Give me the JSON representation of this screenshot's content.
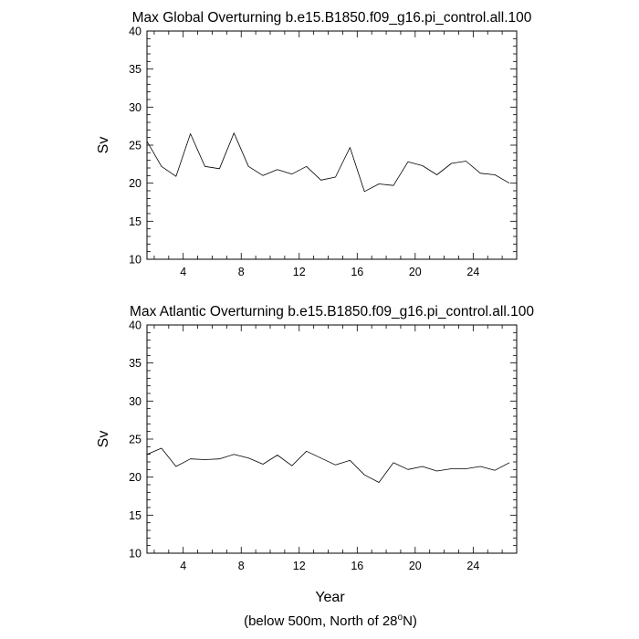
{
  "chart_data": [
    {
      "type": "line",
      "title": "Max Global Overturning b.e15.B1850.f09_g16.pi_control.all.100",
      "xlabel": "",
      "ylabel": "Sv",
      "xlim": [
        1.5,
        27
      ],
      "ylim": [
        10,
        40
      ],
      "xticks": [
        4,
        8,
        12,
        16,
        20,
        24
      ],
      "xtick_labels": [
        "4",
        "8",
        "12",
        "16",
        "20",
        "24"
      ],
      "yticks": [
        10,
        15,
        20,
        25,
        30,
        35,
        40
      ],
      "ytick_labels": [
        "10",
        "15",
        "20",
        "25",
        "30",
        "35",
        "40"
      ],
      "grid": false,
      "series": [
        {
          "x": [
            1.5,
            2.5,
            3.5,
            4.5,
            5.5,
            6.5,
            7.5,
            8.5,
            9.5,
            10.5,
            11.5,
            12.5,
            13.5,
            14.5,
            15.5,
            16.5,
            17.5,
            18.5,
            19.5,
            20.5,
            21.5,
            22.5,
            23.5,
            24.5,
            25.5,
            26.5
          ],
          "values": [
            25.5,
            22.2,
            20.9,
            26.5,
            22.2,
            21.9,
            26.6,
            22.2,
            21.0,
            21.8,
            21.2,
            22.2,
            20.4,
            20.8,
            24.7,
            18.9,
            19.9,
            19.7,
            22.8,
            22.3,
            21.1,
            22.6,
            22.9,
            21.3,
            21.1,
            20.0
          ]
        }
      ]
    },
    {
      "type": "line",
      "title": "Max Atlantic Overturning b.e15.B1850.f09_g16.pi_control.all.100",
      "xlabel": "Year",
      "ylabel": "Sv",
      "xlim": [
        1.5,
        27
      ],
      "ylim": [
        10,
        40
      ],
      "xticks": [
        4,
        8,
        12,
        16,
        20,
        24
      ],
      "xtick_labels": [
        "4",
        "8",
        "12",
        "16",
        "20",
        "24"
      ],
      "yticks": [
        10,
        15,
        20,
        25,
        30,
        35,
        40
      ],
      "ytick_labels": [
        "10",
        "15",
        "20",
        "25",
        "30",
        "35",
        "40"
      ],
      "grid": false,
      "series": [
        {
          "x": [
            1.5,
            2.5,
            3.5,
            4.5,
            5.5,
            6.5,
            7.5,
            8.5,
            9.5,
            10.5,
            11.5,
            12.5,
            13.5,
            14.5,
            15.5,
            16.5,
            17.5,
            18.5,
            19.5,
            20.5,
            21.5,
            22.5,
            23.5,
            24.5,
            25.5,
            26.5
          ],
          "values": [
            23.0,
            23.8,
            21.4,
            22.4,
            22.3,
            22.4,
            23.0,
            22.5,
            21.7,
            22.9,
            21.5,
            23.4,
            22.5,
            21.6,
            22.2,
            20.3,
            19.3,
            21.9,
            21.0,
            21.4,
            20.8,
            21.1,
            21.1,
            21.4,
            20.9,
            21.9
          ]
        }
      ]
    }
  ],
  "caption": {
    "before": "(below 500m, North of 28",
    "superscript": "o",
    "after": "N)"
  }
}
